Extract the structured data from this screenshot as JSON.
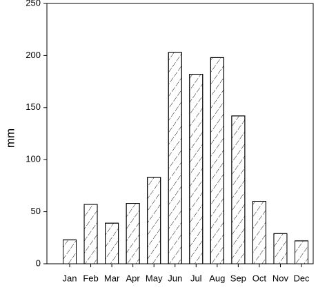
{
  "chart_data": {
    "type": "bar",
    "y_label": "mm",
    "categories": [
      "Jan",
      "Feb",
      "Mar",
      "Apr",
      "May",
      "Jun",
      "Jul",
      "Aug",
      "Sep",
      "Oct",
      "Nov",
      "Dec"
    ],
    "values": [
      23,
      57,
      39,
      58,
      83,
      203,
      182,
      198,
      142,
      60,
      29,
      22
    ],
    "color": "#ffffff",
    "ylim": [
      0,
      250
    ],
    "yticks": [
      0,
      50,
      100,
      150,
      200,
      250
    ]
  }
}
